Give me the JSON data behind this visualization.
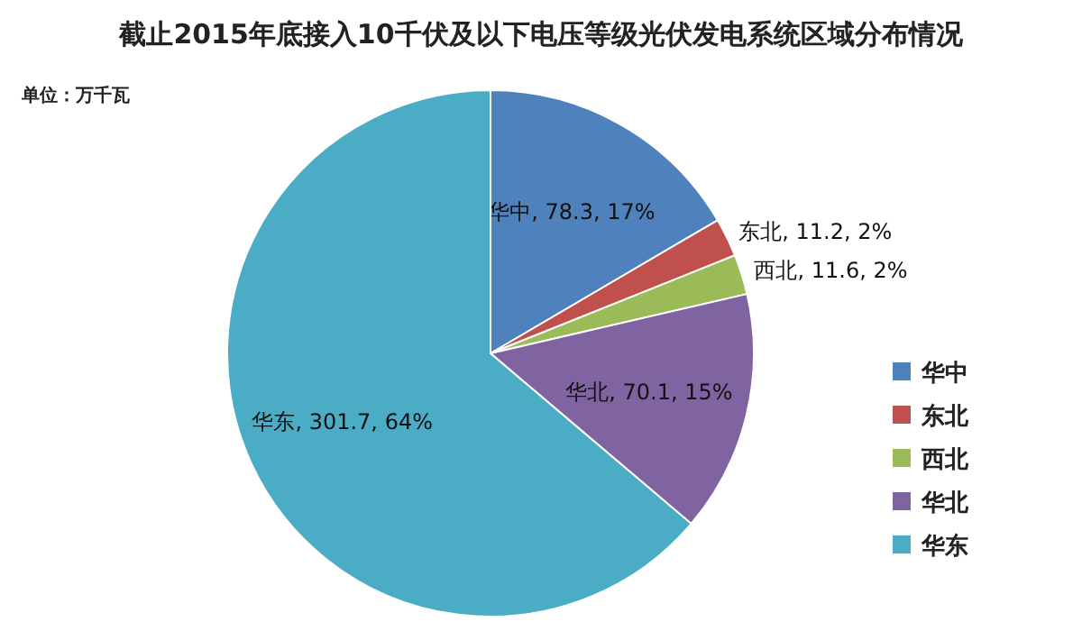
{
  "chart_data": {
    "type": "pie",
    "title": "截止2015年底接入10千伏及以下电压等级光伏发电系统区域分布情况",
    "annotations": [
      "单位：万千瓦"
    ],
    "categories": [
      "华中",
      "东北",
      "西北",
      "华北",
      "华东"
    ],
    "values": [
      78.3,
      11.2,
      11.6,
      70.1,
      301.7
    ],
    "value_labels": [
      "华中, 78.3, 17%",
      "东北, 11.2, 2%",
      "西北, 11.6, 2%",
      "华北, 70.1, 15%",
      "华东, 301.7, 64%"
    ],
    "colors": [
      "#4f81bd",
      "#c0504d",
      "#9bbb59",
      "#8064a2",
      "#4bacc6"
    ],
    "legend": "right"
  }
}
